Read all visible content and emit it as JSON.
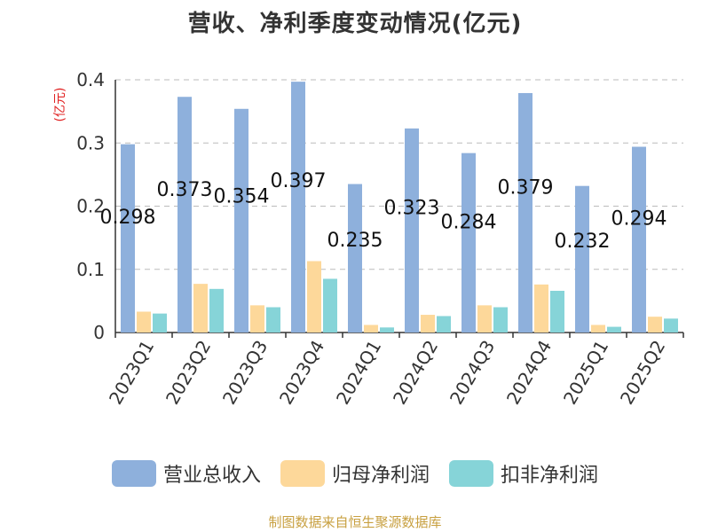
{
  "chart_data": {
    "type": "bar",
    "title": "营收、净利季度变动情况(亿元)",
    "ylabel": "(亿元)",
    "categories": [
      "2023Q1",
      "2023Q2",
      "2023Q3",
      "2023Q4",
      "2024Q1",
      "2024Q2",
      "2024Q3",
      "2024Q4",
      "2025Q1",
      "2025Q2"
    ],
    "series": [
      {
        "name": "营业总收入",
        "color": "#8eb0dc",
        "values": [
          0.298,
          0.373,
          0.354,
          0.397,
          0.235,
          0.323,
          0.284,
          0.379,
          0.232,
          0.294
        ]
      },
      {
        "name": "归母净利润",
        "color": "#fdd89a",
        "values": [
          0.033,
          0.077,
          0.043,
          0.113,
          0.012,
          0.028,
          0.043,
          0.076,
          0.012,
          0.025
        ]
      },
      {
        "name": "扣非净利润",
        "color": "#86d4d8",
        "values": [
          0.03,
          0.069,
          0.04,
          0.085,
          0.008,
          0.026,
          0.04,
          0.066,
          0.009,
          0.022
        ]
      }
    ],
    "data_labels": [
      "0.298",
      "0.373",
      "0.354",
      "0.397",
      "0.235",
      "0.323",
      "0.284",
      "0.379",
      "0.232",
      "0.294"
    ],
    "yticks": [
      "0",
      "0.1",
      "0.2",
      "0.3",
      "0.4"
    ],
    "ylim": [
      0,
      0.4
    ],
    "grid": true,
    "legend_position": "bottom"
  },
  "source": "制图数据来自恒生聚源数据库"
}
